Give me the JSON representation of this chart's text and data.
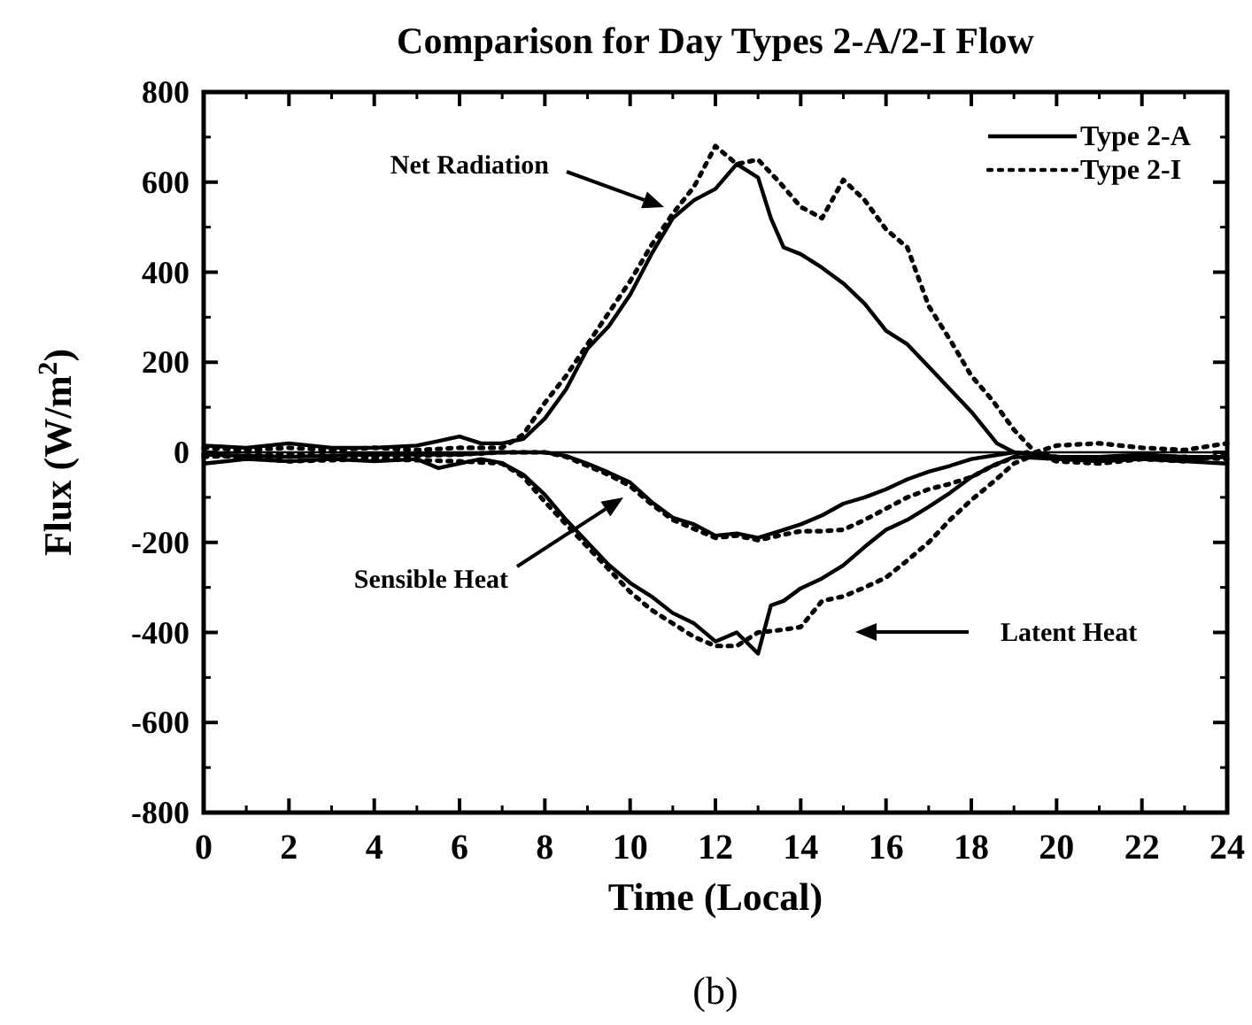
{
  "chart_data": {
    "type": "line",
    "title": "Comparison for Day Types 2-A/2-I Flow",
    "xlabel": "Time (Local)",
    "ylabel": "Flux (W/m$^{2}$)",
    "xlim": [
      0,
      24
    ],
    "xticks": [
      0,
      2,
      4,
      6,
      8,
      10,
      12,
      14,
      16,
      18,
      20,
      22,
      24
    ],
    "ylim": [
      -800,
      800
    ],
    "yticks": [
      -800,
      -600,
      -400,
      -200,
      0,
      200,
      400,
      600,
      800
    ],
    "legend": "top right",
    "grid": false,
    "ref_lines": [
      {
        "axis": "y",
        "value": 0,
        "color": "#000000"
      }
    ],
    "series": [
      {
        "name": "Type 2-A",
        "color": "#000000",
        "line_style": "solid",
        "x": [
          0,
          1,
          2,
          3,
          4,
          5,
          5.5,
          6,
          6.5,
          7,
          7.5,
          8,
          8.5,
          9,
          9.5,
          10,
          10.5,
          11,
          11.5,
          12,
          12.5,
          13,
          13.3,
          13.6,
          14,
          14.5,
          15,
          15.5,
          16,
          16.5,
          17,
          17.5,
          18,
          18.6,
          19,
          20,
          21,
          22,
          23,
          24
        ],
        "values": [
          15,
          10,
          20,
          10,
          10,
          15,
          25,
          35,
          20,
          20,
          30,
          75,
          140,
          230,
          280,
          350,
          440,
          520,
          560,
          585,
          640,
          610,
          520,
          455,
          440,
          410,
          375,
          330,
          270,
          240,
          190,
          140,
          90,
          20,
          0,
          -10,
          -15,
          -10,
          -15,
          -10
        ]
      },
      {
        "name": "Type 2-I",
        "color": "#000000",
        "line_style": "dotted",
        "x": [
          0,
          1,
          2,
          3,
          4,
          5,
          6,
          7,
          7.5,
          8,
          8.5,
          9,
          9.5,
          10,
          10.5,
          11,
          11.5,
          12,
          12.5,
          13,
          13.5,
          14,
          14.5,
          15,
          15.5,
          16,
          16.5,
          17,
          17.5,
          18,
          18.5,
          19,
          19.5,
          20,
          21,
          22,
          23,
          24
        ],
        "values": [
          10,
          5,
          10,
          5,
          10,
          5,
          10,
          10,
          40,
          110,
          170,
          240,
          310,
          380,
          460,
          530,
          590,
          680,
          640,
          650,
          600,
          545,
          520,
          605,
          560,
          495,
          455,
          325,
          250,
          170,
          115,
          50,
          0,
          15,
          20,
          10,
          5,
          20
        ]
      },
      {
        "color": "#000000",
        "line_style": "solid",
        "x": [
          0,
          2,
          4,
          6,
          7,
          8,
          8.5,
          9,
          9.5,
          10,
          10.5,
          11,
          11.5,
          12,
          12.5,
          13,
          13.5,
          14,
          14.5,
          15,
          15.5,
          16,
          16.5,
          17,
          17.5,
          18,
          19,
          20,
          21,
          22,
          23,
          24
        ],
        "values": [
          -5,
          -10,
          -5,
          -5,
          0,
          0,
          -8,
          -25,
          -45,
          -67,
          -110,
          -145,
          -160,
          -185,
          -180,
          -190,
          -175,
          -160,
          -140,
          -114,
          -100,
          -82,
          -60,
          -43,
          -30,
          -15,
          0,
          -10,
          -10,
          -5,
          -10,
          -10
        ]
      },
      {
        "color": "#000000",
        "line_style": "dotted",
        "x": [
          0,
          2,
          4,
          6,
          7,
          8,
          8.5,
          9,
          9.5,
          10,
          10.5,
          11,
          11.5,
          12,
          12.5,
          13,
          13.5,
          14,
          14.5,
          15,
          15.5,
          16,
          16.5,
          17,
          17.5,
          18,
          18.5,
          19.3,
          20,
          21,
          22,
          23,
          24
        ],
        "values": [
          -10,
          -5,
          -10,
          -5,
          0,
          0,
          -10,
          -30,
          -50,
          -75,
          -115,
          -150,
          -170,
          -190,
          -185,
          -195,
          -185,
          -175,
          -175,
          -172,
          -150,
          -125,
          -100,
          -82,
          -70,
          -55,
          -30,
          0,
          -10,
          -15,
          -10,
          -10,
          -15
        ]
      },
      {
        "color": "#000000",
        "line_style": "solid",
        "x": [
          0,
          1,
          2,
          3,
          4,
          5,
          5.5,
          6,
          6.5,
          7,
          7.5,
          8,
          8.5,
          9,
          9.5,
          10,
          10.5,
          11,
          11.5,
          12,
          12.5,
          13,
          13.3,
          13.6,
          14,
          14.5,
          15,
          15.5,
          16,
          16.5,
          17,
          17.5,
          18,
          18.5,
          19,
          20,
          21,
          22,
          23,
          24
        ],
        "values": [
          -25,
          -15,
          -20,
          -15,
          -20,
          -15,
          -35,
          -25,
          -15,
          -24,
          -50,
          -94,
          -150,
          -200,
          -250,
          -290,
          -320,
          -357,
          -380,
          -420,
          -400,
          -447,
          -340,
          -330,
          -302,
          -280,
          -251,
          -210,
          -172,
          -150,
          -121,
          -90,
          -55,
          -30,
          -10,
          -15,
          -20,
          -15,
          -20,
          -25
        ]
      },
      {
        "color": "#000000",
        "line_style": "dotted",
        "x": [
          0,
          2,
          4,
          6,
          7,
          7.5,
          8,
          8.5,
          9,
          9.5,
          10,
          10.5,
          11,
          11.5,
          12,
          12.5,
          13,
          13.5,
          14,
          14.5,
          15,
          15.5,
          16,
          16.5,
          17,
          17.5,
          18,
          18.5,
          19,
          19.5,
          20,
          21,
          22,
          23,
          24
        ],
        "values": [
          -5,
          -20,
          -15,
          -20,
          -25,
          -55,
          -110,
          -160,
          -210,
          -260,
          -310,
          -350,
          -380,
          -410,
          -430,
          -430,
          -400,
          -395,
          -388,
          -330,
          -320,
          -300,
          -278,
          -240,
          -200,
          -150,
          -106,
          -67,
          -25,
          -5,
          -20,
          -25,
          -15,
          -20,
          -5
        ]
      }
    ],
    "annotations": [
      "Net Radiation",
      "Sensible Heat",
      "Latent Heat",
      "(b)"
    ]
  }
}
